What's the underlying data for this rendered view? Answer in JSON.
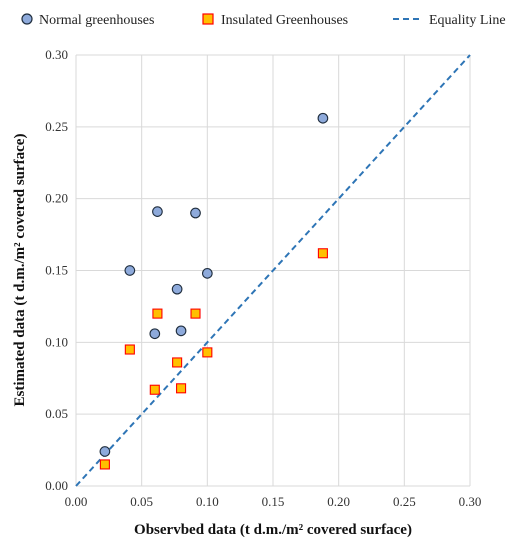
{
  "chart_data": {
    "type": "scatter",
    "xlabel": "Observbed data (t d.m./m² covered surface)",
    "ylabel": "Estimated data (t d.m./m² covered surface)",
    "xlim": [
      0,
      0.3
    ],
    "ylim": [
      0,
      0.3
    ],
    "x_ticks": [
      "0.00",
      "0.05",
      "0.10",
      "0.15",
      "0.20",
      "0.25",
      "0.30"
    ],
    "y_ticks": [
      "0.00",
      "0.05",
      "0.10",
      "0.15",
      "0.20",
      "0.25",
      "0.30"
    ],
    "grid": true,
    "legend_position": "top",
    "series": [
      {
        "name": "Normal greenhouses",
        "marker": "circle",
        "color": "#8eaadb",
        "edge_color": "#1f2d3d",
        "points": [
          {
            "x": 0.022,
            "y": 0.024
          },
          {
            "x": 0.041,
            "y": 0.15
          },
          {
            "x": 0.06,
            "y": 0.106
          },
          {
            "x": 0.062,
            "y": 0.191
          },
          {
            "x": 0.077,
            "y": 0.137
          },
          {
            "x": 0.08,
            "y": 0.108
          },
          {
            "x": 0.091,
            "y": 0.19
          },
          {
            "x": 0.1,
            "y": 0.148
          },
          {
            "x": 0.188,
            "y": 0.256
          }
        ]
      },
      {
        "name": "Insulated Greenhouses",
        "marker": "square",
        "color": "#ffc000",
        "edge_color": "#ff0000",
        "points": [
          {
            "x": 0.022,
            "y": 0.015
          },
          {
            "x": 0.041,
            "y": 0.095
          },
          {
            "x": 0.06,
            "y": 0.067
          },
          {
            "x": 0.062,
            "y": 0.12
          },
          {
            "x": 0.077,
            "y": 0.086
          },
          {
            "x": 0.08,
            "y": 0.068
          },
          {
            "x": 0.091,
            "y": 0.12
          },
          {
            "x": 0.1,
            "y": 0.093
          },
          {
            "x": 0.188,
            "y": 0.162
          }
        ]
      },
      {
        "name": "Equality Line",
        "marker": "dashed-line",
        "color": "#2e75b6",
        "points": [
          {
            "x": 0.0,
            "y": 0.0
          },
          {
            "x": 0.3,
            "y": 0.3
          }
        ]
      }
    ]
  }
}
